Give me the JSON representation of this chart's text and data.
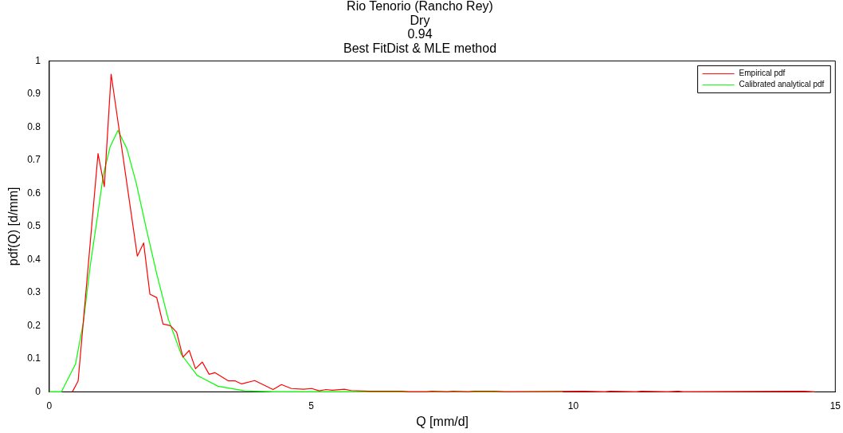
{
  "chart_data": {
    "type": "line",
    "title": "Rio Tenorio (Rancho Rey)\nDry\n0.94\nBest FitDist & MLE method",
    "xlabel": "Q [mm/d]",
    "ylabel": "pdf(Q) [d/mm]",
    "xlim": [
      0,
      15
    ],
    "xticks": [
      0,
      5,
      10,
      15
    ],
    "ylim": [
      0,
      1
    ],
    "yticks": [
      0,
      0.1,
      0.2,
      0.3,
      0.4,
      0.5,
      0.6,
      0.7,
      0.8,
      0.9,
      1
    ],
    "legend": "top right",
    "grid": false,
    "marker": "none",
    "line_style": "solid",
    "series": [
      {
        "name": "Empirical pdf",
        "color": "#ff0000",
        "x": [
          0.44,
          0.55,
          0.93,
          1.05,
          1.18,
          1.68,
          1.8,
          1.92,
          2.05,
          2.17,
          2.31,
          2.43,
          2.55,
          2.67,
          2.79,
          2.92,
          3.05,
          3.16,
          3.42,
          3.55,
          3.67,
          3.92,
          4.27,
          4.43,
          4.62,
          4.85,
          5.01,
          5.15,
          5.28,
          5.4,
          5.63,
          5.76,
          6.11,
          6.72,
          6.85,
          7.2,
          7.3,
          7.6,
          7.7,
          8.0,
          8.1,
          8.5,
          8.7,
          8.8,
          10.2,
          10.6,
          10.7,
          11.2,
          11.3,
          11.8,
          12.0,
          12.1,
          14.4,
          14.6
        ],
        "values": [
          0,
          0.033,
          0.72,
          0.62,
          0.96,
          0.41,
          0.45,
          0.295,
          0.285,
          0.205,
          0.2,
          0.18,
          0.105,
          0.125,
          0.07,
          0.09,
          0.053,
          0.058,
          0.033,
          0.033,
          0.024,
          0.034,
          0.007,
          0.022,
          0.01,
          0.008,
          0.01,
          0.003,
          0.007,
          0.005,
          0.008,
          0.004,
          0.002,
          0.002,
          0,
          0,
          0.002,
          0,
          0.002,
          0,
          0.002,
          0.002,
          0,
          0,
          0.002,
          0,
          0.002,
          0,
          0.002,
          0,
          0.002,
          0,
          0.002,
          0
        ]
      },
      {
        "name": "Calibrated analytical pdf",
        "color": "#00ff00",
        "x": [
          0,
          0.23,
          0.5,
          0.65,
          0.78,
          0.91,
          1.03,
          1.16,
          1.31,
          1.48,
          1.66,
          1.86,
          2.06,
          2.27,
          2.52,
          2.82,
          3.22,
          3.73,
          4.3,
          9.8
        ],
        "values": [
          0,
          0,
          0.084,
          0.21,
          0.38,
          0.52,
          0.655,
          0.74,
          0.79,
          0.735,
          0.63,
          0.487,
          0.35,
          0.22,
          0.113,
          0.05,
          0.017,
          0.003,
          0,
          0
        ]
      }
    ]
  }
}
